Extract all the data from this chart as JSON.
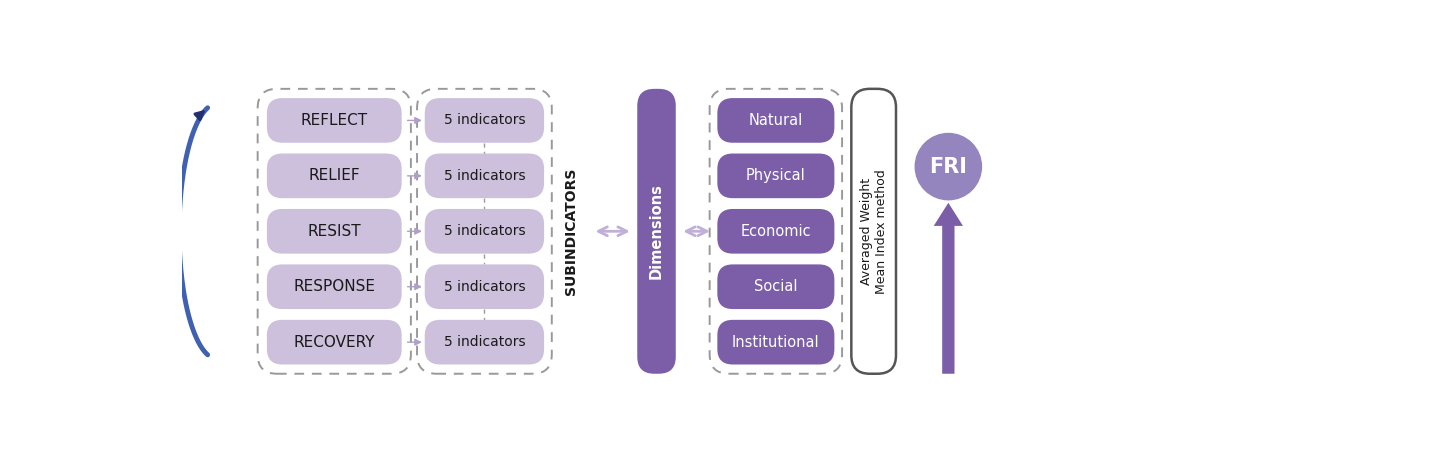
{
  "fig_width": 14.29,
  "fig_height": 4.58,
  "dpi": 100,
  "bg_color": "#ffffff",
  "reflect_labels": [
    "REFLECT",
    "RELIEF",
    "RESIST",
    "RESPONSE",
    "RECOVERY"
  ],
  "reflect_box_color": "#ccc0dc",
  "reflect_box_edge": "#ccc0dc",
  "reflect_text_color": "#1a1a1a",
  "indicator_label": "5 indicators",
  "indicator_box_color": "#ccc0dc",
  "indicator_box_edge": "#ccc0dc",
  "indicator_text_color": "#1a1a1a",
  "subindicators_label": "SUBINDICATORS",
  "subindicators_text_color": "#1a1a1a",
  "dimensions_label": "Dimensions",
  "dimensions_bar_color": "#7b5ea7",
  "dimensions_text_color": "#ffffff",
  "dimension_items": [
    "Natural",
    "Physical",
    "Economic",
    "Social",
    "Institutional"
  ],
  "dimension_box_color": "#7b5ea7",
  "dimension_text_color": "#ffffff",
  "awm_label": "Averaged Weight\nMean Index method",
  "awm_box_color": "#ffffff",
  "awm_box_edge": "#555555",
  "awm_text_color": "#1a1a1a",
  "fri_label": "FRI",
  "fri_circle_color": "#9585bf",
  "fri_text_color": "#ffffff",
  "arrow_color": "#7b5ea7",
  "small_arrow_color": "#b0a0c8",
  "double_arrow_color": "#c0b0d8",
  "blue_arc_color_top": "#203070",
  "blue_arc_color_bot": "#4060b0",
  "dashed_color": "#999999"
}
